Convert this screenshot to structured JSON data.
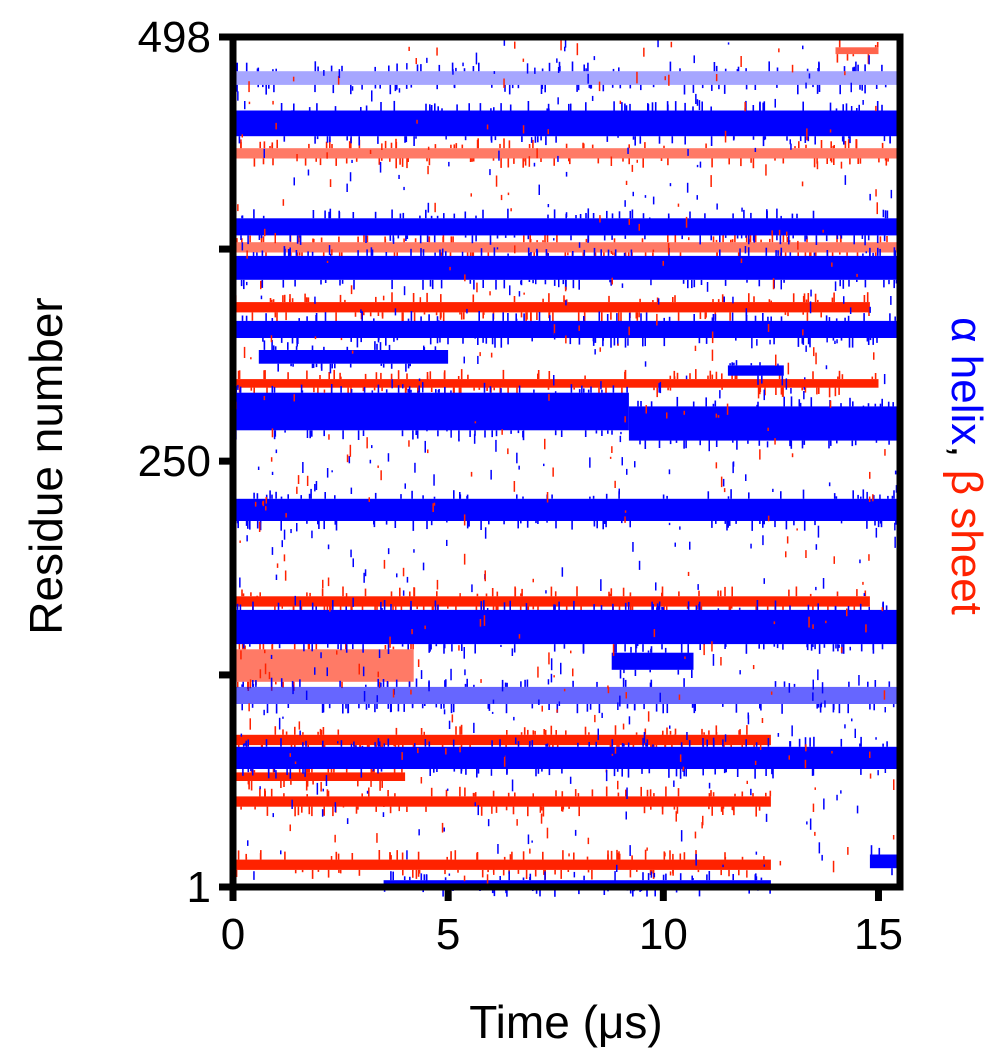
{
  "chart_data": {
    "type": "heatmap",
    "xlabel": "Time (μs)",
    "ylabel": "Residue number",
    "xlim": [
      0,
      15.5
    ],
    "ylim": [
      1,
      498
    ],
    "x_ticks": [
      0,
      5,
      10,
      15
    ],
    "x_tick_labels": [
      "0",
      "5",
      "10",
      "15"
    ],
    "y_ticks": [
      1,
      125,
      250,
      374,
      498
    ],
    "y_tick_labels": [
      "1",
      "",
      "250",
      "",
      "498"
    ],
    "legend": {
      "placement": "right",
      "orientation": "vertical",
      "entries": [
        {
          "label": "α helix",
          "color": "#0000ff"
        },
        {
          "label": ", ",
          "color": "#000000"
        },
        {
          "label": "β sheet",
          "color": "#ff2200"
        }
      ]
    },
    "colors": {
      "helix": "#0000ff",
      "sheet": "#ff2200",
      "coil": "#ffffff"
    },
    "series": [
      {
        "name": "α helix",
        "color": "#0000ff",
        "bands": [
          {
            "res": [
              470,
              478
            ],
            "t": [
              0.0,
              15.5
            ],
            "density": 0.35
          },
          {
            "res": [
              440,
              455
            ],
            "t": [
              0.0,
              15.5
            ],
            "density": 0.95
          },
          {
            "res": [
              382,
              392
            ],
            "t": [
              0.0,
              15.5
            ],
            "density": 0.95
          },
          {
            "res": [
              356,
              370
            ],
            "t": [
              0.0,
              15.5
            ],
            "density": 0.95
          },
          {
            "res": [
              322,
              332
            ],
            "t": [
              0.0,
              15.5
            ],
            "density": 0.95
          },
          {
            "res": [
              307,
              315
            ],
            "t": [
              0.6,
              5.0
            ],
            "density": 0.8
          },
          {
            "res": [
              300,
              306
            ],
            "t": [
              11.5,
              12.8
            ],
            "density": 0.9
          },
          {
            "res": [
              268,
              290
            ],
            "t": [
              0.0,
              9.2
            ],
            "density": 0.98
          },
          {
            "res": [
              262,
              282
            ],
            "t": [
              9.2,
              15.5
            ],
            "density": 0.95
          },
          {
            "res": [
              215,
              228
            ],
            "t": [
              0.0,
              15.5
            ],
            "density": 0.85
          },
          {
            "res": [
              143,
              163
            ],
            "t": [
              0.0,
              15.5
            ],
            "density": 0.98
          },
          {
            "res": [
              128,
              138
            ],
            "t": [
              8.8,
              10.7
            ],
            "density": 0.9
          },
          {
            "res": [
              108,
              118
            ],
            "t": [
              0.0,
              15.5
            ],
            "density": 0.6
          },
          {
            "res": [
              70,
              83
            ],
            "t": [
              0.0,
              15.5
            ],
            "density": 0.95
          },
          {
            "res": [
              12,
              20
            ],
            "t": [
              14.8,
              15.5
            ],
            "density": 0.9
          },
          {
            "res": [
              1,
              5
            ],
            "t": [
              3.5,
              12.5
            ],
            "density": 0.8
          }
        ]
      },
      {
        "name": "β sheet",
        "color": "#ff2200",
        "bands": [
          {
            "res": [
              488,
              492
            ],
            "t": [
              14.0,
              15.0
            ],
            "density": 0.7
          },
          {
            "res": [
              427,
              433
            ],
            "t": [
              0.0,
              15.5
            ],
            "density": 0.6
          },
          {
            "res": [
              372,
              378
            ],
            "t": [
              0.0,
              15.5
            ],
            "density": 0.6
          },
          {
            "res": [
              337,
              343
            ],
            "t": [
              0.0,
              14.8
            ],
            "density": 0.85
          },
          {
            "res": [
              293,
              298
            ],
            "t": [
              0.0,
              15.0
            ],
            "density": 0.85
          },
          {
            "res": [
              165,
              171
            ],
            "t": [
              0.0,
              14.8
            ],
            "density": 0.85
          },
          {
            "res": [
              121,
              140
            ],
            "t": [
              0.0,
              4.2
            ],
            "density": 0.6
          },
          {
            "res": [
              84,
              90
            ],
            "t": [
              0.0,
              12.5
            ],
            "density": 0.9
          },
          {
            "res": [
              63,
              68
            ],
            "t": [
              0.0,
              4.0
            ],
            "density": 0.8
          },
          {
            "res": [
              48,
              54
            ],
            "t": [
              0.0,
              12.5
            ],
            "density": 0.85
          },
          {
            "res": [
              11,
              17
            ],
            "t": [
              0.0,
              12.5
            ],
            "density": 0.9
          }
        ]
      }
    ]
  }
}
